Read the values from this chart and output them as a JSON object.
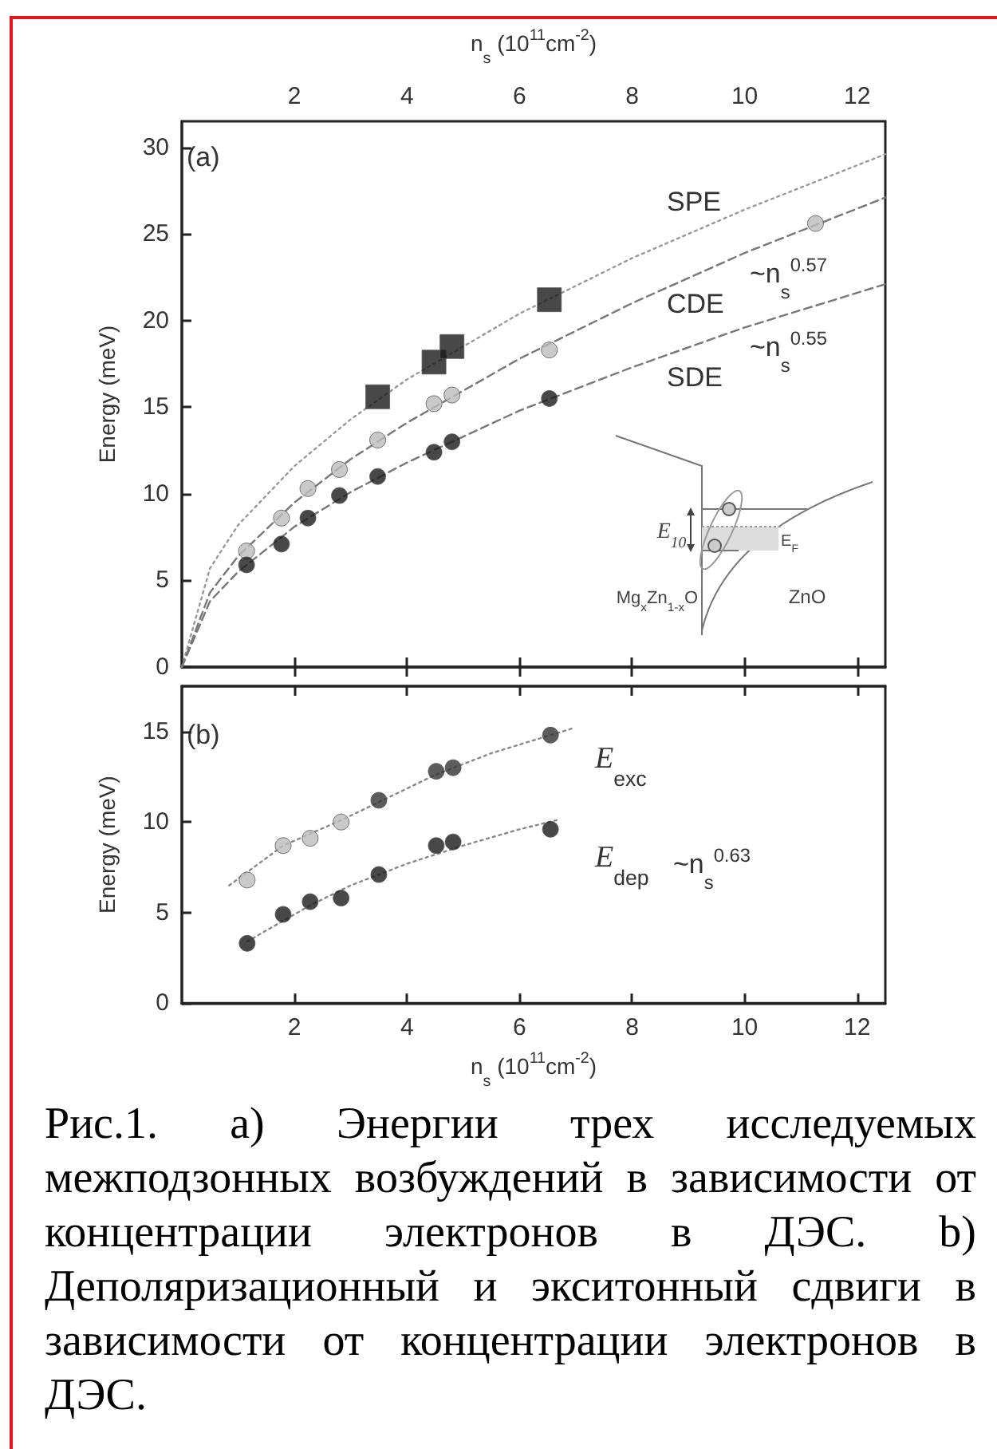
{
  "chart_data": [
    {
      "type": "scatter",
      "xlim": [
        0,
        12.5
      ],
      "xticks": [
        2,
        4,
        6,
        8,
        10,
        12
      ],
      "xlabel": "n$_{s}$ (10$^{11}$cm$^{-2}$)",
      "ylabel": "Energy (meV)",
      "ylim": [
        0,
        31.5
      ],
      "yticks": [
        0,
        5,
        10,
        15,
        20,
        25,
        30
      ],
      "grid": false,
      "series": [
        {
          "type": "line",
          "color": "#999999",
          "line_style": "dotted",
          "marker": "none",
          "x": [
            0,
            0.5,
            1,
            2,
            3,
            4,
            6,
            8,
            10,
            12.5
          ],
          "values": [
            0,
            5.7,
            8.2,
            11.6,
            14.3,
            16.6,
            20.4,
            23.6,
            26.4,
            29.6
          ]
        },
        {
          "type": "line",
          "color": "#777777",
          "line_style": "dashed",
          "marker": "none",
          "x": [
            0,
            0.5,
            1,
            2,
            3,
            4,
            6,
            8,
            10,
            12.5
          ],
          "values": [
            0,
            4.3,
            6.4,
            9.5,
            12.0,
            14.1,
            17.8,
            21.0,
            23.9,
            27.1
          ]
        },
        {
          "type": "line",
          "color": "#777777",
          "line_style": "dashed",
          "marker": "none",
          "x": [
            0,
            0.5,
            1,
            2,
            3,
            4,
            6,
            8,
            10,
            12.5
          ],
          "values": [
            0,
            3.8,
            5.5,
            8.1,
            10.1,
            11.8,
            14.8,
            17.3,
            19.6,
            22.1
          ]
        },
        {
          "color": "#1a1a1a",
          "marker": "square",
          "x": [
            3.48,
            4.48,
            4.8,
            6.53
          ],
          "values": [
            15.6,
            17.6,
            18.5,
            21.2
          ]
        },
        {
          "color": "#bbbbbb",
          "marker": "circle",
          "x": [
            1.15,
            1.77,
            2.24,
            2.8,
            3.48,
            4.48,
            4.8,
            6.53,
            11.26
          ],
          "values": [
            6.7,
            8.6,
            10.3,
            11.4,
            13.1,
            15.2,
            15.7,
            18.3,
            25.6
          ]
        },
        {
          "color": "#1a1a1a",
          "marker": "circle",
          "x": [
            1.15,
            1.77,
            2.24,
            2.8,
            3.48,
            4.48,
            4.8,
            6.53
          ],
          "values": [
            5.9,
            7.1,
            8.6,
            9.9,
            11.0,
            12.4,
            13.0,
            15.5
          ]
        }
      ],
      "annotations": [
        "(a)",
        "SPE",
        "~n$_{s}$$^{0.57}$",
        "CDE",
        "~n$_{s}$$^{0.55}$",
        "SDE",
        "E$_{10}$",
        "E$_{F}$",
        "Mg$_{x}$Zn$_{1-x}$O",
        "ZnO"
      ]
    },
    {
      "type": "scatter",
      "xlim": [
        0,
        12.5
      ],
      "xticks": [
        2,
        4,
        6,
        8,
        10,
        12
      ],
      "xlabel": "n$_{s}$ (10$^{11}$cm$^{-2}$)",
      "ylabel": "Energy (meV)",
      "ylim": [
        0,
        17.5
      ],
      "yticks": [
        0,
        5,
        10,
        15
      ],
      "grid": false,
      "series": [
        {
          "type": "line",
          "color": "#888888",
          "line_style": "dotted",
          "marker": "none",
          "x": [
            0.84,
            1.8,
            2.83,
            3.5,
            4.5,
            5.5,
            6.97
          ],
          "values": [
            6.5,
            8.7,
            10.1,
            11.1,
            12.6,
            13.8,
            15.2
          ]
        },
        {
          "type": "line",
          "color": "#888888",
          "line_style": "dotted",
          "marker": "none",
          "x": [
            1.16,
            2.28,
            3,
            4,
            5,
            6,
            6.66
          ],
          "values": [
            3.4,
            5.4,
            6.5,
            7.7,
            8.7,
            9.6,
            10.1
          ]
        },
        {
          "type": "scatter",
          "colors": [
            "#bbbbbb",
            "#bbbbbb",
            "#bbbbbb",
            "#bbbbbb",
            "#333333",
            "#333333",
            "#333333",
            "#333333"
          ],
          "marker": "circle",
          "x": [
            1.16,
            1.8,
            2.28,
            2.83,
            3.5,
            4.52,
            4.82,
            6.55
          ],
          "values": [
            6.8,
            8.7,
            9.1,
            10.0,
            11.2,
            12.8,
            13.0,
            14.8
          ]
        },
        {
          "type": "scatter",
          "color": "#1a1a1a",
          "marker": "circle",
          "x": [
            1.16,
            1.8,
            2.28,
            2.83,
            3.5,
            4.52,
            4.82,
            6.55
          ],
          "values": [
            3.3,
            4.9,
            5.6,
            5.8,
            7.1,
            8.7,
            8.9,
            9.6
          ]
        }
      ],
      "annotations": [
        "(b)",
        "E$_{exc}$",
        "E$_{dep}$",
        "~n$_{s}$$^{0.63}$",
        "Рис.1. a) Энергии трех исследуемых межподзонных возбуждений в зависимости от концентрации электронов в ДЭС. b) Деполяризационный и экситонный сдвиги в зависимости от концентрации электронов в ДЭС."
      ]
    }
  ]
}
